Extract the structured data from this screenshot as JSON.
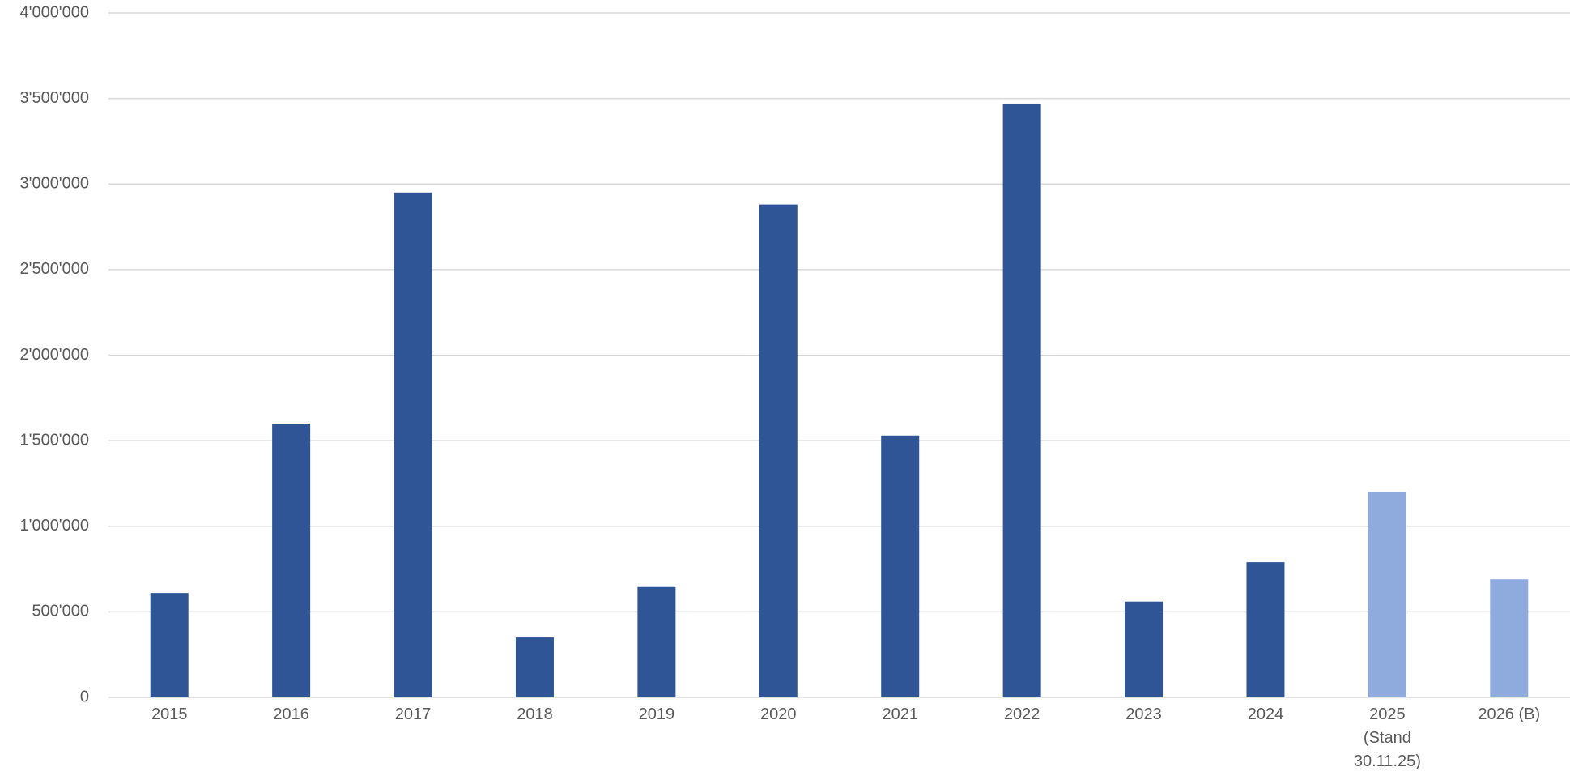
{
  "chart_data": {
    "type": "bar",
    "categories": [
      "2015",
      "2016",
      "2017",
      "2018",
      "2019",
      "2020",
      "2021",
      "2022",
      "2023",
      "2024",
      "2025 (Stand 30.11.25)",
      "2026 (B)"
    ],
    "values": [
      610000,
      1600000,
      2950000,
      350000,
      645000,
      2880000,
      1530000,
      3470000,
      560000,
      790000,
      1200000,
      690000
    ],
    "colors": [
      "#2f5597",
      "#2f5597",
      "#2f5597",
      "#2f5597",
      "#2f5597",
      "#2f5597",
      "#2f5597",
      "#2f5597",
      "#2f5597",
      "#2f5597",
      "#8faadc",
      "#8faadc"
    ],
    "ylim": [
      0,
      4000000
    ],
    "yticks": [
      0,
      {
        "value": 500000,
        "label": "500'000"
      },
      {
        "value": 1000000,
        "label": "1'000'000"
      },
      {
        "value": 1500000,
        "label": "1'500'000"
      },
      {
        "value": 2000000,
        "label": "2'000'000"
      },
      {
        "value": 2500000,
        "label": "2'500'000"
      },
      {
        "value": 3000000,
        "label": "3'000'000"
      },
      {
        "value": 3500000,
        "label": "3'500'000"
      },
      {
        "value": 4000000,
        "label": "4'000'000"
      }
    ],
    "grid": true
  }
}
